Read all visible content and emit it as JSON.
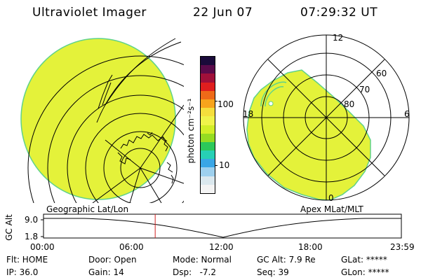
{
  "header": {
    "instrument": "Ultraviolet Imager",
    "date": "22 Jun 07",
    "time": "07:29:32 UT"
  },
  "colors": {
    "aurora_fill": "#e4f23a",
    "aurora_edge": "#5fd28a",
    "timeline_marker": "#d02020"
  },
  "colorbar": {
    "unit_label": "photon cm⁻²s⁻¹",
    "ticks": [
      "100",
      "10"
    ],
    "colors_top_to_bottom": [
      "#1a0a3a",
      "#5a0a4a",
      "#a0103a",
      "#e01e1e",
      "#ee6a18",
      "#f7a41c",
      "#f5de3c",
      "#f0f34a",
      "#d2ee28",
      "#95dc22",
      "#2cc85a",
      "#27d0b5",
      "#3aa6e6",
      "#9ed0ee",
      "#dbe8ee",
      "#f4f4f4"
    ]
  },
  "left_panel": {
    "label": "Geographic Lat/Lon"
  },
  "right_panel": {
    "label": "Apex MLat/MLT",
    "mlt_labels": [
      "12",
      "18",
      "6",
      "0"
    ],
    "lat_labels": [
      "60",
      "70",
      "80"
    ]
  },
  "timeline": {
    "axis_label": "GC Alt",
    "y_ticks": [
      "9.0",
      "1.8"
    ],
    "x_ticks": [
      "00:00",
      "06:00",
      "12:00",
      "18:00",
      "23:59"
    ],
    "current_hours": 7.49
  },
  "info": {
    "filter": "Flt: HOME",
    "ip": "IP: 36.0",
    "door": "Door: Open",
    "gain": "Gain: 14",
    "mode": "Mode: Normal",
    "dsp": "Dsp:   -7.2",
    "gc_alt": "GC Alt: 7.9 Re",
    "seq": "Seq: 39",
    "glat": "GLat: *****",
    "glon": "GLon: *****"
  }
}
